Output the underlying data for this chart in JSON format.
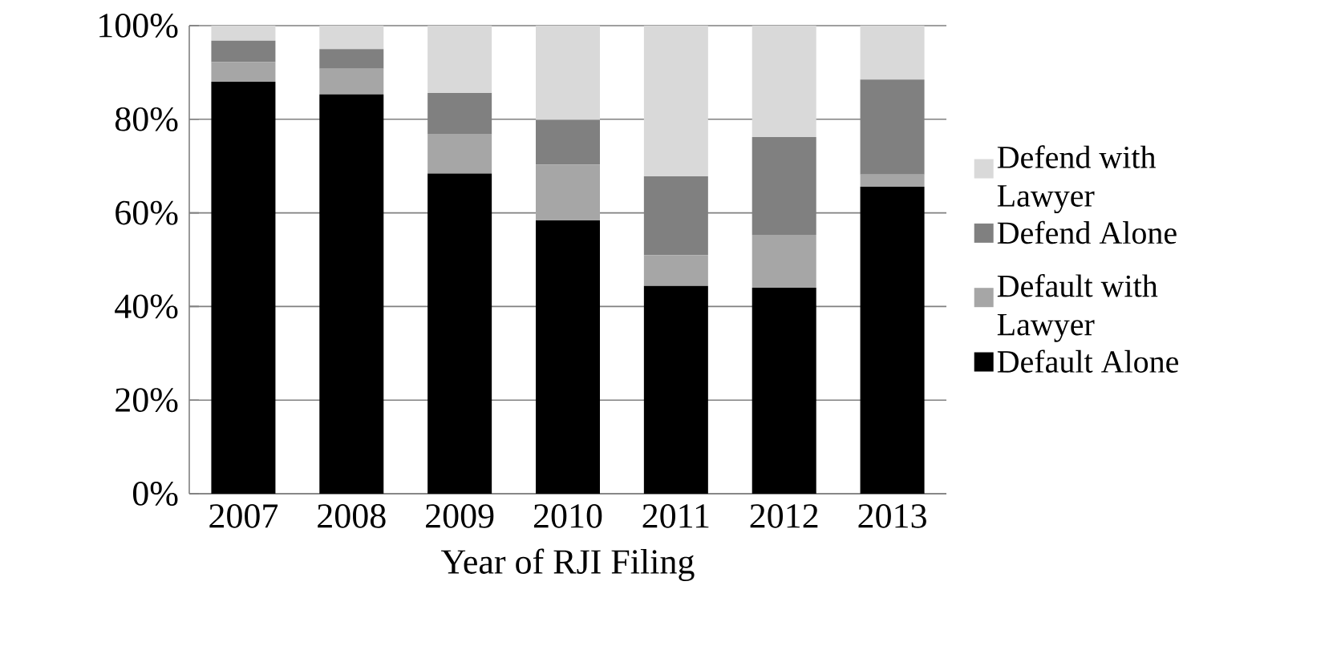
{
  "chart_data": {
    "type": "bar",
    "stacked": true,
    "xlabel": "Year of RJI Filing",
    "categories": [
      "2007",
      "2008",
      "2009",
      "2010",
      "2011",
      "2012",
      "2013"
    ],
    "series": [
      {
        "name": "Default Alone",
        "color": "#000000",
        "values": [
          88.0,
          85.3,
          68.4,
          58.4,
          44.4,
          44.0,
          65.6
        ]
      },
      {
        "name": "Default with Lawyer",
        "color": "#a6a6a6",
        "values": [
          4.2,
          5.5,
          8.5,
          11.9,
          6.6,
          11.3,
          2.6
        ]
      },
      {
        "name": "Defend Alone",
        "color": "#808080",
        "values": [
          4.6,
          4.2,
          8.7,
          9.6,
          16.8,
          20.9,
          20.3
        ]
      },
      {
        "name": "Defend with Lawyer",
        "color": "#d9d9d9",
        "values": [
          3.2,
          5.0,
          14.4,
          20.1,
          32.2,
          23.8,
          11.5
        ]
      }
    ],
    "ylim": [
      0,
      100
    ],
    "yticks": [
      {
        "value": 0,
        "label": "0%"
      },
      {
        "value": 20,
        "label": "20%"
      },
      {
        "value": 40,
        "label": "40%"
      },
      {
        "value": 60,
        "label": "60%"
      },
      {
        "value": 80,
        "label": "80%"
      },
      {
        "value": 100,
        "label": "100%"
      }
    ],
    "grid": "y",
    "legend": "right"
  }
}
